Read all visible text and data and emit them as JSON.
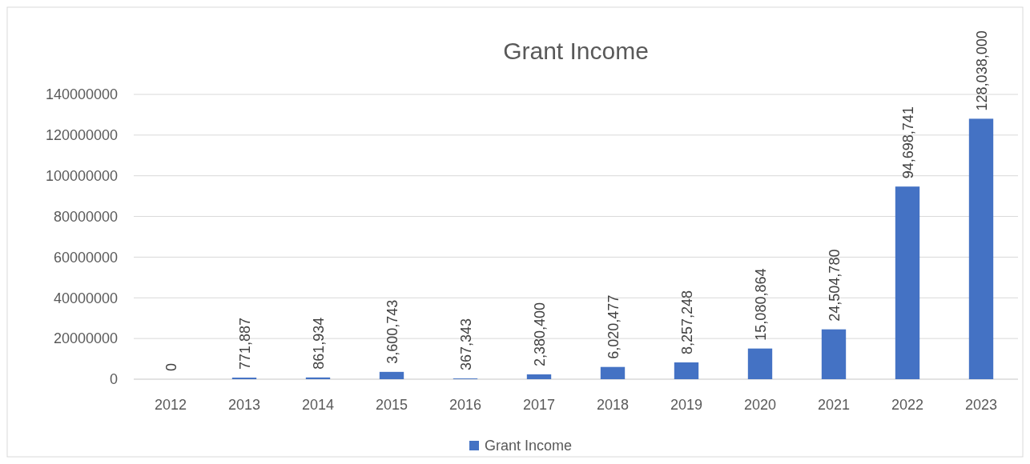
{
  "chart_data": {
    "type": "bar",
    "title": "Grant Income",
    "categories": [
      "2012",
      "2013",
      "2014",
      "2015",
      "2016",
      "2017",
      "2018",
      "2019",
      "2020",
      "2021",
      "2022",
      "2023"
    ],
    "series": [
      {
        "name": "Grant Income",
        "color": "#4472c4",
        "values": [
          0,
          771887,
          861934,
          3600743,
          367343,
          2380400,
          6020477,
          8257248,
          15080864,
          24504780,
          94698741,
          128038000
        ],
        "value_labels": [
          "0",
          "771,887",
          "861,934",
          "3,600,743",
          "367,343",
          "2,380,400",
          "6,020,477",
          "8,257,248",
          "15,080,864",
          "24,504,780",
          "94,698,741",
          "128,038,000"
        ]
      }
    ],
    "ylim": [
      0,
      140000000
    ],
    "yticks": [
      0,
      20000000,
      40000000,
      60000000,
      80000000,
      100000000,
      120000000,
      140000000
    ],
    "grid": "y",
    "legend": "bottom"
  }
}
